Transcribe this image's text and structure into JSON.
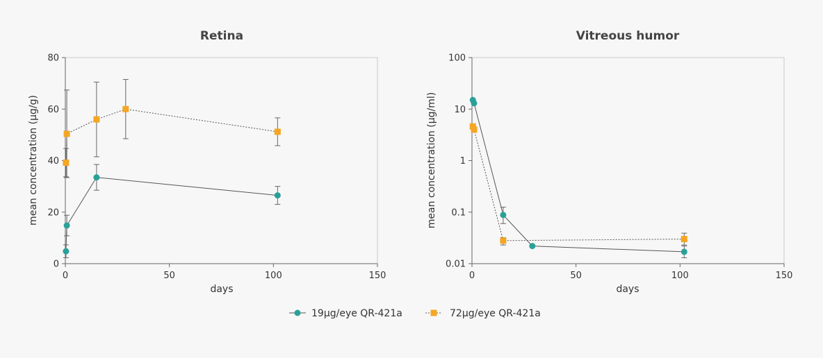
{
  "chart_data": [
    {
      "type": "line",
      "title": "Retina",
      "xlabel": "days",
      "ylabel": "mean concentration (µg/g)",
      "yscale": "linear",
      "xlim": [
        0,
        150
      ],
      "ylim": [
        0,
        80
      ],
      "xticks": [
        "0",
        "50",
        "100",
        "150"
      ],
      "yticks": [
        "0",
        "20",
        "40",
        "60",
        "80"
      ],
      "grid": false,
      "series": [
        {
          "name": "19µg/eye QR-421a",
          "x": [
            0.3,
            0.7,
            15,
            102
          ],
          "y": [
            4.8,
            14.8,
            33.5,
            26.5
          ],
          "err": [
            2.5,
            4.0,
            5.0,
            3.5
          ]
        },
        {
          "name": "72µg/eye QR-421a",
          "x": [
            0.3,
            0.7,
            15,
            29,
            102
          ],
          "y": [
            39.2,
            50.4,
            56.0,
            60.0,
            51.2
          ],
          "err": [
            5.5,
            17.0,
            14.5,
            11.5,
            5.4
          ]
        }
      ]
    },
    {
      "type": "line",
      "title": "Vitreous humor",
      "xlabel": "days",
      "ylabel": "mean concentration (µg/ml)",
      "yscale": "log",
      "xlim": [
        0,
        150
      ],
      "ylim": [
        0.01,
        100
      ],
      "xticks": [
        "0",
        "50",
        "100",
        "150"
      ],
      "yticks": [
        "0.01",
        "0.1",
        "1",
        "10",
        "100"
      ],
      "grid": false,
      "series": [
        {
          "name": "19µg/eye QR-421a",
          "x": [
            0.4,
            1.0,
            15,
            29,
            102
          ],
          "y": [
            15,
            13,
            0.088,
            0.022,
            0.017
          ],
          "err_hi": [
            null,
            null,
            0.125,
            null,
            0.022
          ],
          "err_lo": [
            null,
            null,
            0.06,
            null,
            0.013
          ]
        },
        {
          "name": "72µg/eye QR-421a",
          "x": [
            0.4,
            1.0,
            15,
            102
          ],
          "y": [
            4.6,
            4.0,
            0.028,
            0.03
          ],
          "err_hi": [
            null,
            null,
            0.032,
            0.039
          ],
          "err_lo": [
            null,
            null,
            0.023,
            0.023
          ]
        }
      ]
    }
  ],
  "legend": {
    "position": "bottom-center",
    "items": [
      {
        "label": "19µg/eye QR-421a",
        "marker": "circle",
        "line": "solid",
        "color": "#2aa198"
      },
      {
        "label": "72µg/eye QR-421a",
        "marker": "square",
        "line": "dotted",
        "color": "#f5a623"
      }
    ]
  },
  "colors": {
    "series1": "#2aa198",
    "series2": "#f5a623",
    "axis": "#666666",
    "line": "#555555",
    "error": "#666666"
  }
}
